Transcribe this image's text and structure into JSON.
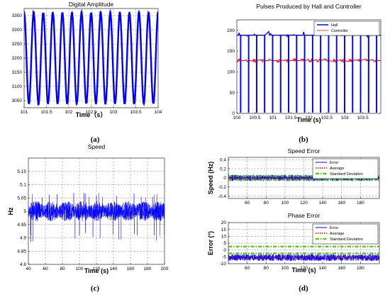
{
  "chart_data": [
    {
      "id": "a",
      "type": "line",
      "caption": "(a)",
      "title": "Digital Amplitude",
      "xlabel": "Time（s）",
      "ylabel": "",
      "xlim": [
        101,
        104
      ],
      "ylim": [
        3025,
        3375
      ],
      "xticks": [
        101,
        101.5,
        102,
        102.5,
        103,
        103.5,
        104
      ],
      "yticks": [
        3050,
        3100,
        3150,
        3200,
        3250,
        3300,
        3350
      ],
      "grid": true,
      "series": [
        {
          "color": "#0000ff",
          "description_values": {
            "form": "sinusoid",
            "min": 3040,
            "max": 3360,
            "cycles": 14
          }
        }
      ]
    },
    {
      "id": "b",
      "type": "line",
      "caption": "(b)",
      "title": "Pulses Produced by Hall and  Controller",
      "xlabel": "Time (s)",
      "ylabel": "",
      "xlim": [
        100,
        104
      ],
      "ylim": [
        0,
        225
      ],
      "xticks": [
        100,
        100.5,
        101,
        101.5,
        102,
        102.5,
        103,
        103.5
      ],
      "yticks": [
        0,
        50,
        100,
        150,
        200
      ],
      "grid": false,
      "legend_position": "top-right",
      "series": [
        {
          "name": "Hall",
          "color": "#0000ff",
          "high": 188,
          "low": 0,
          "pulses": 18
        },
        {
          "name": "Controller",
          "color": "#ff0000",
          "high": 127,
          "low": 0,
          "pulses": 18
        }
      ]
    },
    {
      "id": "c",
      "type": "line",
      "caption": "(c)",
      "title": "Speed",
      "xlabel": "Time (s)",
      "ylabel": "Hz",
      "xlim": [
        40,
        200
      ],
      "ylim": [
        4.8,
        5.2
      ],
      "xticks": [
        40,
        60,
        80,
        100,
        120,
        140,
        160,
        180,
        200
      ],
      "yticks": [
        4.8,
        4.85,
        4.9,
        4.95,
        5,
        5.05,
        5.1,
        5.15
      ],
      "grid": true,
      "series": [
        {
          "color": "#0000ff",
          "center": 5.0,
          "typical_range": [
            4.95,
            5.05
          ],
          "extreme_range": [
            4.88,
            5.07
          ]
        }
      ]
    },
    {
      "id": "d1",
      "type": "line",
      "caption": "",
      "title": "Speed Error",
      "xlabel": "",
      "ylabel": "Speed (Hz)",
      "xlim": [
        40,
        200
      ],
      "ylim": [
        -0.45,
        0.45
      ],
      "xticks": [
        60,
        80,
        100,
        120,
        140,
        160,
        180
      ],
      "yticks": [
        -0.4,
        -0.2,
        0,
        0.2,
        0.4
      ],
      "grid": true,
      "legend_position": "top-right",
      "series": [
        {
          "name": "Error",
          "color": "#0000ff",
          "center": 0,
          "range": [
            -0.07,
            0.07
          ]
        },
        {
          "name": "Average",
          "color": "#cc0000",
          "value": 0
        },
        {
          "name": "Standard Deviation",
          "color": "#44cc00",
          "value": 0.04
        }
      ]
    },
    {
      "id": "d2",
      "type": "line",
      "caption": "(d)",
      "title": "Phase Error",
      "xlabel": "Time (s)",
      "ylabel": "Error (°)",
      "xlim": [
        40,
        200
      ],
      "ylim": [
        -10,
        20
      ],
      "xticks": [
        60,
        80,
        100,
        120,
        140,
        160,
        180
      ],
      "yticks": [
        -10,
        -5,
        0,
        5,
        10,
        15,
        20
      ],
      "grid": true,
      "legend_position": "top-right",
      "series": [
        {
          "name": "Error",
          "color": "#0000ff",
          "center": -5,
          "range": [
            -8,
            -3
          ]
        },
        {
          "name": "Average",
          "color": "#cc0000",
          "value": -5
        },
        {
          "name": "Standard Deviation",
          "color": "#44cc00",
          "values": [
            -2.5,
            2.5
          ]
        }
      ]
    }
  ]
}
